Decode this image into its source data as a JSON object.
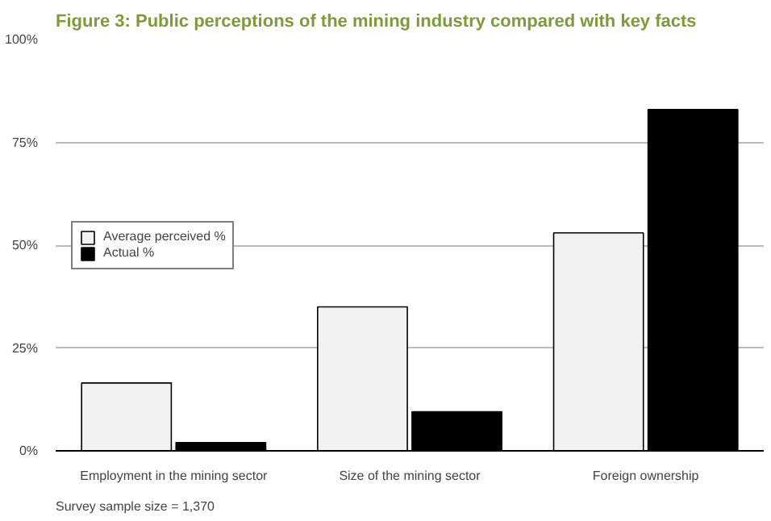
{
  "chart_data": {
    "type": "bar",
    "title": "Figure 3:  Public perceptions of the mining industry compared with key facts",
    "categories": [
      "Employment in the mining sector",
      "Size of the mining sector",
      "Foreign ownership"
    ],
    "series": [
      {
        "name": "Average perceived %",
        "color": "#f2f2f2",
        "values": [
          16.5,
          35,
          53
        ]
      },
      {
        "name": "Actual %",
        "color": "#000000",
        "values": [
          2,
          9.5,
          83
        ]
      }
    ],
    "ylim": [
      0,
      100
    ],
    "yticks": [
      {
        "value": 0,
        "label": "0%"
      },
      {
        "value": 25,
        "label": "25%"
      },
      {
        "value": 50,
        "label": "50%"
      },
      {
        "value": 75,
        "label": "75%"
      },
      {
        "value": 100,
        "label": "100%"
      }
    ],
    "grid": "y",
    "legend": "left",
    "annotations": [
      "Survey sample size = 1,370"
    ]
  }
}
